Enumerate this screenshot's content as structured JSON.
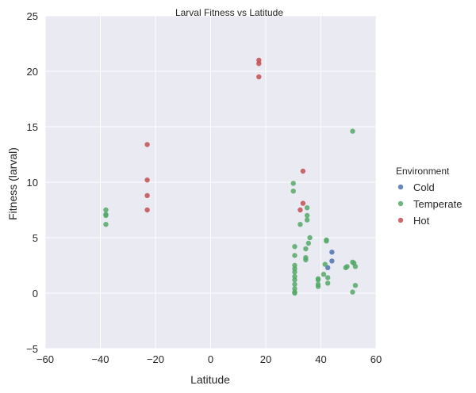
{
  "chart_data": {
    "type": "scatter",
    "title": "Larval Fitness vs Latitude",
    "xlabel": "Latitude",
    "ylabel": "Fitness (larval)",
    "xlim": [
      -60,
      60
    ],
    "ylim": [
      -5,
      25
    ],
    "xticks": [
      -60,
      -40,
      -20,
      0,
      20,
      40,
      60
    ],
    "yticks": [
      -5,
      0,
      5,
      10,
      15,
      20,
      25
    ],
    "xtick_labels": [
      "−60",
      "−40",
      "−20",
      "0",
      "20",
      "40",
      "60"
    ],
    "ytick_labels": [
      "−5",
      "0",
      "5",
      "10",
      "15",
      "20",
      "25"
    ],
    "grid": true,
    "legend": {
      "title": "Environment",
      "placement": "right"
    },
    "series": [
      {
        "name": "Cold",
        "color": "#4c72b0",
        "points": [
          [
            44,
            3.7
          ],
          [
            44,
            2.9
          ],
          [
            42.5,
            2.3
          ]
        ]
      },
      {
        "name": "Temperate",
        "color": "#55a868",
        "points": [
          [
            -38,
            7.5
          ],
          [
            -38,
            7.1
          ],
          [
            -38,
            7.0
          ],
          [
            -38,
            6.2
          ],
          [
            30,
            9.9
          ],
          [
            30,
            9.2
          ],
          [
            30.5,
            4.2
          ],
          [
            30.5,
            3.4
          ],
          [
            30.5,
            2.5
          ],
          [
            30.5,
            2.2
          ],
          [
            30.5,
            1.9
          ],
          [
            30.5,
            1.5
          ],
          [
            30.5,
            1.2
          ],
          [
            30.5,
            0.8
          ],
          [
            30.5,
            0.4
          ],
          [
            30.5,
            0.1
          ],
          [
            30.5,
            0.0
          ],
          [
            32.5,
            6.2
          ],
          [
            34.5,
            4.0
          ],
          [
            34.5,
            3.2
          ],
          [
            34.5,
            3.0
          ],
          [
            35,
            7.7
          ],
          [
            35,
            7.0
          ],
          [
            35,
            6.6
          ],
          [
            35.5,
            4.5
          ],
          [
            36,
            5.0
          ],
          [
            39,
            1.3
          ],
          [
            39,
            1.2
          ],
          [
            39,
            0.8
          ],
          [
            39,
            0.6
          ],
          [
            41,
            1.7
          ],
          [
            41.5,
            2.6
          ],
          [
            42,
            4.8
          ],
          [
            42,
            4.7
          ],
          [
            42.5,
            1.4
          ],
          [
            42.5,
            0.9
          ],
          [
            49,
            2.3
          ],
          [
            49.5,
            2.4
          ],
          [
            51.5,
            2.8
          ],
          [
            52,
            2.7
          ],
          [
            52.5,
            2.4
          ],
          [
            51.5,
            14.6
          ],
          [
            52.5,
            0.7
          ],
          [
            51.5,
            0.1
          ]
        ]
      },
      {
        "name": "Hot",
        "color": "#c44e52",
        "points": [
          [
            -23,
            13.4
          ],
          [
            -23,
            10.2
          ],
          [
            -23,
            8.8
          ],
          [
            -23,
            7.5
          ],
          [
            17.5,
            21.0
          ],
          [
            17.5,
            20.7
          ],
          [
            17.5,
            19.5
          ],
          [
            33.5,
            11.0
          ],
          [
            33.5,
            8.1
          ],
          [
            32.5,
            7.5
          ]
        ]
      }
    ]
  }
}
